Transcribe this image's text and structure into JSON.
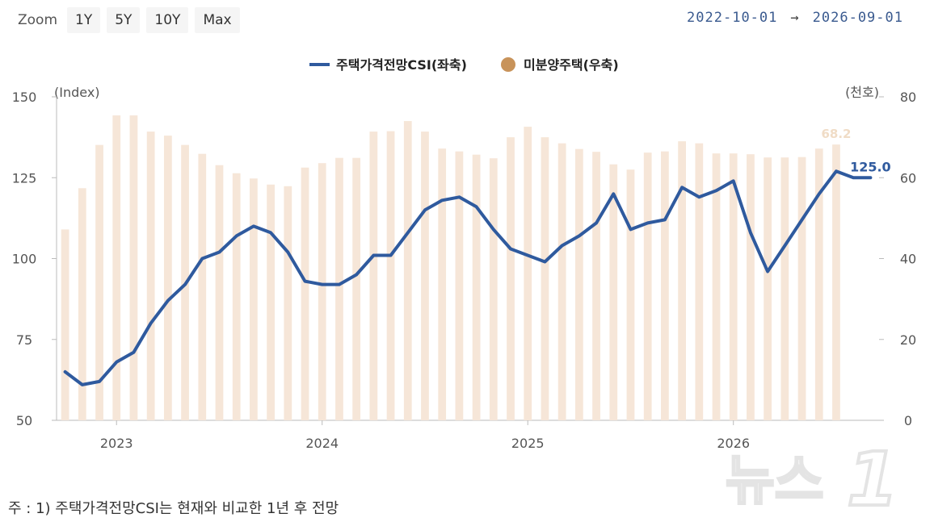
{
  "zoom": {
    "label": "Zoom",
    "buttons": [
      "1Y",
      "5Y",
      "10Y",
      "Max"
    ]
  },
  "range": {
    "from": "2022-10-01",
    "arrow": "→",
    "to": "2026-09-01"
  },
  "footnote": "주 : 1) 주택가격전망CSI는 현재와 비교한 1년 후 전망",
  "watermark": "뉴스1",
  "colors": {
    "line": "#2f5a9e",
    "bar": "#f6e6d8",
    "bar_legend": "#c8935a",
    "axis_text": "#555555",
    "grid": "#bbbbbb"
  },
  "chart_data": {
    "type": "bar+line",
    "legend": {
      "position": "top-center",
      "line_label": "주택가격전망CSI(좌축)",
      "bar_label": "미분양주택(우축)"
    },
    "left_axis": {
      "title": "(Index)",
      "min": 50,
      "max": 150,
      "ticks": [
        150,
        125,
        100,
        75,
        50
      ]
    },
    "right_axis": {
      "title": "(천호)",
      "min": 0,
      "max": 80,
      "ticks": [
        80,
        60,
        40,
        20,
        0
      ]
    },
    "x_labels": [
      {
        "label": "2023",
        "month_index": 3
      },
      {
        "label": "2024",
        "month_index": 15
      },
      {
        "label": "2025",
        "month_index": 27
      },
      {
        "label": "2026",
        "month_index": 39
      }
    ],
    "months": [
      "2022-10",
      "2022-11",
      "2022-12",
      "2023-01",
      "2023-02",
      "2023-03",
      "2023-04",
      "2023-05",
      "2023-06",
      "2023-07",
      "2023-08",
      "2023-09",
      "2023-10",
      "2023-11",
      "2023-12",
      "2024-01",
      "2024-02",
      "2024-03",
      "2024-04",
      "2024-05",
      "2024-06",
      "2024-07",
      "2024-08",
      "2024-09",
      "2024-10",
      "2024-11",
      "2024-12",
      "2025-01",
      "2025-02",
      "2025-03",
      "2025-04",
      "2025-05",
      "2025-06",
      "2025-07",
      "2025-08",
      "2025-09",
      "2025-10",
      "2025-11",
      "2025-12",
      "2026-01",
      "2026-02",
      "2026-03",
      "2026-04",
      "2026-05",
      "2026-06",
      "2026-07",
      "2026-08",
      "2026-09"
    ],
    "bars": [
      47.2,
      57.4,
      68.1,
      75.4,
      75.4,
      71.4,
      70.4,
      68.1,
      65.9,
      63.1,
      61.1,
      59.8,
      58.3,
      57.9,
      62.5,
      63.6,
      64.9,
      64.9,
      71.4,
      71.5,
      74.0,
      71.4,
      67.2,
      66.5,
      65.7,
      64.8,
      70.0,
      72.6,
      70.0,
      68.5,
      67.1,
      66.4,
      63.3,
      62.0,
      66.2,
      66.5,
      69.0,
      68.5,
      66.0,
      66.0,
      65.8,
      65.0,
      65.0,
      65.1,
      67.2,
      68.2
    ],
    "line": [
      65,
      61,
      62,
      68,
      71,
      80,
      87,
      92,
      100,
      102,
      107,
      110,
      108,
      102,
      93,
      92,
      92,
      95,
      101,
      101,
      108,
      115,
      118,
      119,
      116,
      109,
      103,
      101,
      99,
      104,
      107,
      111,
      120,
      109,
      111,
      112,
      122,
      119,
      121,
      124,
      108,
      96,
      104,
      112,
      120,
      127,
      125,
      125
    ],
    "labels": {
      "last_bar": "68.2",
      "last_line": "125.0"
    }
  }
}
